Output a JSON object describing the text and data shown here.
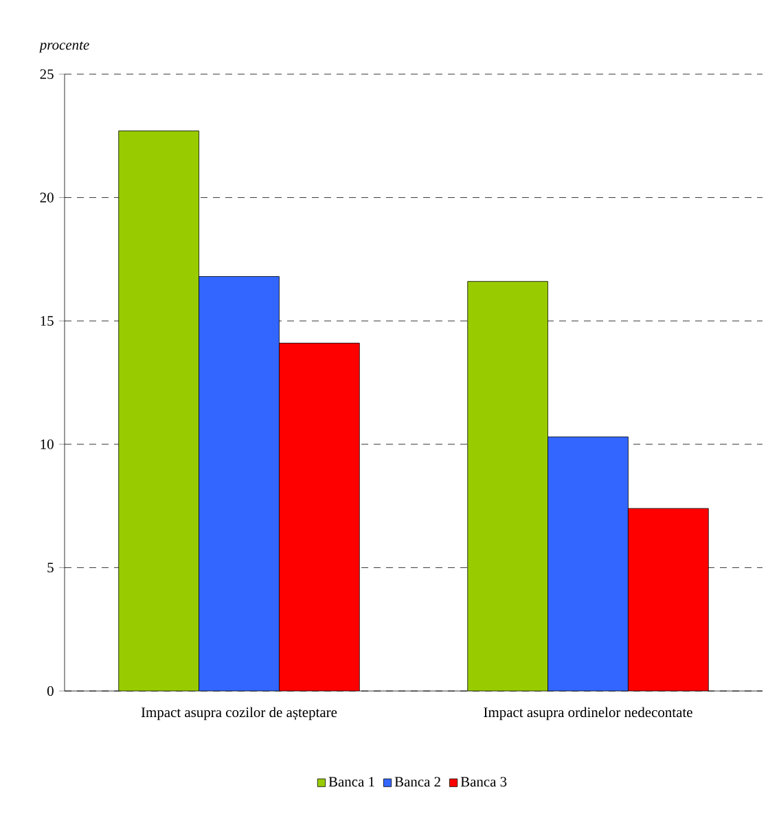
{
  "chart_data": {
    "type": "bar",
    "ylabel": "procente",
    "categories": [
      "Impact asupra cozilor de așteptare",
      "Impact asupra ordinelor nedecontate"
    ],
    "series": [
      {
        "name": "Banca 1",
        "color": "#99cc00",
        "values": [
          22.7,
          16.6
        ]
      },
      {
        "name": "Banca 2",
        "color": "#3366ff",
        "values": [
          16.8,
          10.3
        ]
      },
      {
        "name": "Banca 3",
        "color": "#ff0000",
        "values": [
          14.1,
          7.4
        ]
      }
    ],
    "ylim": [
      0,
      25
    ],
    "yticks": [
      0,
      5,
      10,
      15,
      20,
      25
    ],
    "grid": "y",
    "legend": "bottom"
  }
}
